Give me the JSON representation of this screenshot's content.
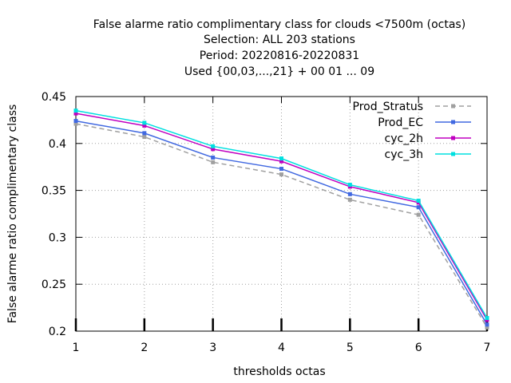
{
  "chart_data": {
    "type": "line",
    "title_lines": [
      "False alarme ratio complimentary class  for clouds <7500m (octas)",
      "Selection: ALL    203 stations",
      "Period: 20220816-20220831",
      "Used {00,03,...,21} + 00 01 ... 09"
    ],
    "xlabel": "thresholds octas",
    "ylabel": "False alarme ratio complimentary class",
    "x": [
      1,
      2,
      3,
      4,
      5,
      6,
      7
    ],
    "xlim": [
      1,
      7
    ],
    "ylim": [
      0.2,
      0.45
    ],
    "xticks": [
      "1",
      "2",
      "3",
      "4",
      "5",
      "6",
      "7"
    ],
    "yticks": [
      "0.2",
      "0.25",
      "0.3",
      "0.35",
      "0.4",
      "0.45"
    ],
    "grid": true,
    "legend_position": "top-right",
    "series": [
      {
        "name": "Prod_Stratus",
        "color": "#a0a0a0",
        "dashed": true,
        "values": [
          0.421,
          0.407,
          0.38,
          0.367,
          0.34,
          0.324,
          0.204
        ]
      },
      {
        "name": "Prod_EC",
        "color": "#4169e1",
        "dashed": false,
        "values": [
          0.424,
          0.411,
          0.385,
          0.373,
          0.346,
          0.332,
          0.207
        ]
      },
      {
        "name": "cyc_2h",
        "color": "#c000c0",
        "dashed": false,
        "values": [
          0.432,
          0.419,
          0.394,
          0.381,
          0.354,
          0.337,
          0.212
        ]
      },
      {
        "name": "cyc_3h",
        "color": "#00e0e0",
        "dashed": false,
        "values": [
          0.435,
          0.422,
          0.397,
          0.384,
          0.356,
          0.339,
          0.214
        ]
      }
    ]
  }
}
